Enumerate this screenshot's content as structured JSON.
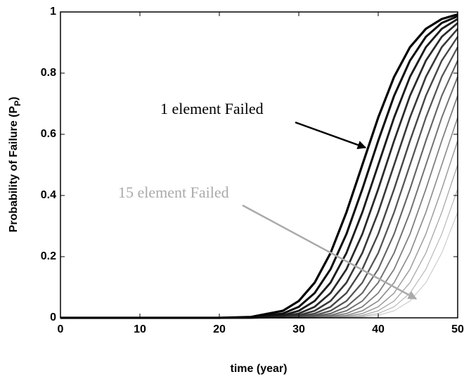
{
  "chart_data": {
    "type": "line",
    "xlabel": "time (year)",
    "ylabel": [
      "Probability of Failure (P",
      "P",
      ")"
    ],
    "annotations": [
      {
        "text": "1 element Failed",
        "color": "#000000"
      },
      {
        "text": "15 element Failed",
        "color": "#aaaaaa"
      }
    ],
    "x": [
      0,
      10,
      20,
      24,
      28,
      30,
      32,
      34,
      36,
      38,
      40,
      42,
      44,
      46,
      48,
      50
    ],
    "xlim": [
      0,
      50
    ],
    "xticks": [
      0,
      10,
      20,
      30,
      40,
      50
    ],
    "ylim": [
      0,
      1
    ],
    "yticks": [
      0,
      0.2,
      0.4,
      0.6,
      0.8,
      1
    ],
    "grid": false,
    "series": [
      {
        "color": "#000000",
        "values": [
          0,
          0,
          0,
          0.003,
          0.023,
          0.055,
          0.115,
          0.212,
          0.345,
          0.5,
          0.655,
          0.788,
          0.885,
          0.945,
          0.977,
          0.992
        ]
      },
      {
        "color": "#0e0e0e",
        "values": [
          0,
          0,
          0,
          0.001,
          0.014,
          0.036,
          0.081,
          0.159,
          0.274,
          0.421,
          0.579,
          0.726,
          0.841,
          0.919,
          0.964,
          0.986
        ]
      },
      {
        "color": "#1c1c1c",
        "values": [
          0,
          0,
          0,
          0.001,
          0.008,
          0.023,
          0.055,
          0.115,
          0.212,
          0.345,
          0.5,
          0.655,
          0.788,
          0.885,
          0.945,
          0.977
        ]
      },
      {
        "color": "#2a2a2a",
        "values": [
          0,
          0,
          0,
          0,
          0.005,
          0.014,
          0.036,
          0.081,
          0.159,
          0.274,
          0.421,
          0.579,
          0.726,
          0.841,
          0.919,
          0.964
        ]
      },
      {
        "color": "#383838",
        "values": [
          0,
          0,
          0,
          0,
          0.003,
          0.008,
          0.023,
          0.055,
          0.115,
          0.212,
          0.345,
          0.5,
          0.655,
          0.788,
          0.885,
          0.945
        ]
      },
      {
        "color": "#464646",
        "values": [
          0,
          0,
          0,
          0,
          0.001,
          0.005,
          0.014,
          0.036,
          0.081,
          0.159,
          0.274,
          0.421,
          0.579,
          0.726,
          0.841,
          0.919
        ]
      },
      {
        "color": "#545454",
        "values": [
          0,
          0,
          0,
          0,
          0.001,
          0.003,
          0.008,
          0.023,
          0.055,
          0.115,
          0.212,
          0.345,
          0.5,
          0.655,
          0.788,
          0.885
        ]
      },
      {
        "color": "#626262",
        "values": [
          0,
          0,
          0,
          0,
          0,
          0.001,
          0.005,
          0.014,
          0.036,
          0.081,
          0.159,
          0.274,
          0.421,
          0.579,
          0.726,
          0.841
        ]
      },
      {
        "color": "#707070",
        "values": [
          0,
          0,
          0,
          0,
          0,
          0.001,
          0.003,
          0.008,
          0.023,
          0.055,
          0.115,
          0.212,
          0.345,
          0.5,
          0.655,
          0.788
        ]
      },
      {
        "color": "#7e7e7e",
        "values": [
          0,
          0,
          0,
          0,
          0,
          0,
          0.001,
          0.005,
          0.014,
          0.036,
          0.081,
          0.159,
          0.274,
          0.421,
          0.579,
          0.726
        ]
      },
      {
        "color": "#8c8c8c",
        "values": [
          0,
          0,
          0,
          0,
          0,
          0,
          0.001,
          0.003,
          0.008,
          0.023,
          0.055,
          0.115,
          0.212,
          0.345,
          0.5,
          0.655
        ]
      },
      {
        "color": "#9a9a9a",
        "values": [
          0,
          0,
          0,
          0,
          0,
          0,
          0,
          0.001,
          0.005,
          0.014,
          0.036,
          0.081,
          0.159,
          0.274,
          0.421,
          0.579
        ]
      },
      {
        "color": "#a8a8a8",
        "values": [
          0,
          0,
          0,
          0,
          0,
          0,
          0,
          0.001,
          0.003,
          0.008,
          0.023,
          0.055,
          0.115,
          0.212,
          0.345,
          0.5
        ]
      },
      {
        "color": "#b6b6b6",
        "values": [
          0,
          0,
          0,
          0,
          0,
          0,
          0,
          0,
          0.001,
          0.005,
          0.014,
          0.036,
          0.081,
          0.159,
          0.274,
          0.421
        ]
      },
      {
        "color": "#c4c4c4",
        "values": [
          0,
          0,
          0,
          0,
          0,
          0,
          0,
          0,
          0.001,
          0.003,
          0.008,
          0.023,
          0.055,
          0.115,
          0.212,
          0.345
        ]
      }
    ]
  }
}
